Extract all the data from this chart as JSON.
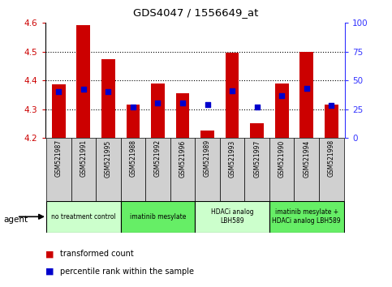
{
  "title": "GDS4047 / 1556649_at",
  "samples": [
    "GSM521987",
    "GSM521991",
    "GSM521995",
    "GSM521988",
    "GSM521992",
    "GSM521996",
    "GSM521989",
    "GSM521993",
    "GSM521997",
    "GSM521990",
    "GSM521994",
    "GSM521998"
  ],
  "bar_values": [
    4.385,
    4.592,
    4.475,
    4.315,
    4.39,
    4.355,
    4.225,
    4.495,
    4.25,
    4.39,
    4.5,
    4.315
  ],
  "pct_ranks": [
    40,
    42,
    40,
    27,
    30,
    30,
    29,
    41,
    27,
    37,
    43,
    28
  ],
  "bar_bottom": 4.2,
  "ylim": [
    4.2,
    4.6
  ],
  "y2lim": [
    0,
    100
  ],
  "yticks": [
    4.2,
    4.3,
    4.4,
    4.5,
    4.6
  ],
  "y2ticks": [
    0,
    25,
    50,
    75,
    100
  ],
  "bar_color": "#cc0000",
  "percentile_color": "#0000cc",
  "groups": [
    {
      "label": "no treatment control",
      "start": 0,
      "end": 3,
      "color": "#ccffcc"
    },
    {
      "label": "imatinib mesylate",
      "start": 3,
      "end": 6,
      "color": "#66ee66"
    },
    {
      "label": "HDACi analog\nLBH589",
      "start": 6,
      "end": 9,
      "color": "#ccffcc"
    },
    {
      "label": "imatinib mesylate +\nHDACi analog LBH589",
      "start": 9,
      "end": 12,
      "color": "#66ee66"
    }
  ],
  "legend_bar_label": "transformed count",
  "legend_pct_label": "percentile rank within the sample",
  "agent_label": "agent",
  "tick_color_left": "#cc0000",
  "tick_color_right": "#3333ff",
  "sample_bg_color": "#d0d0d0",
  "grid_yticks": [
    4.3,
    4.4,
    4.5
  ]
}
